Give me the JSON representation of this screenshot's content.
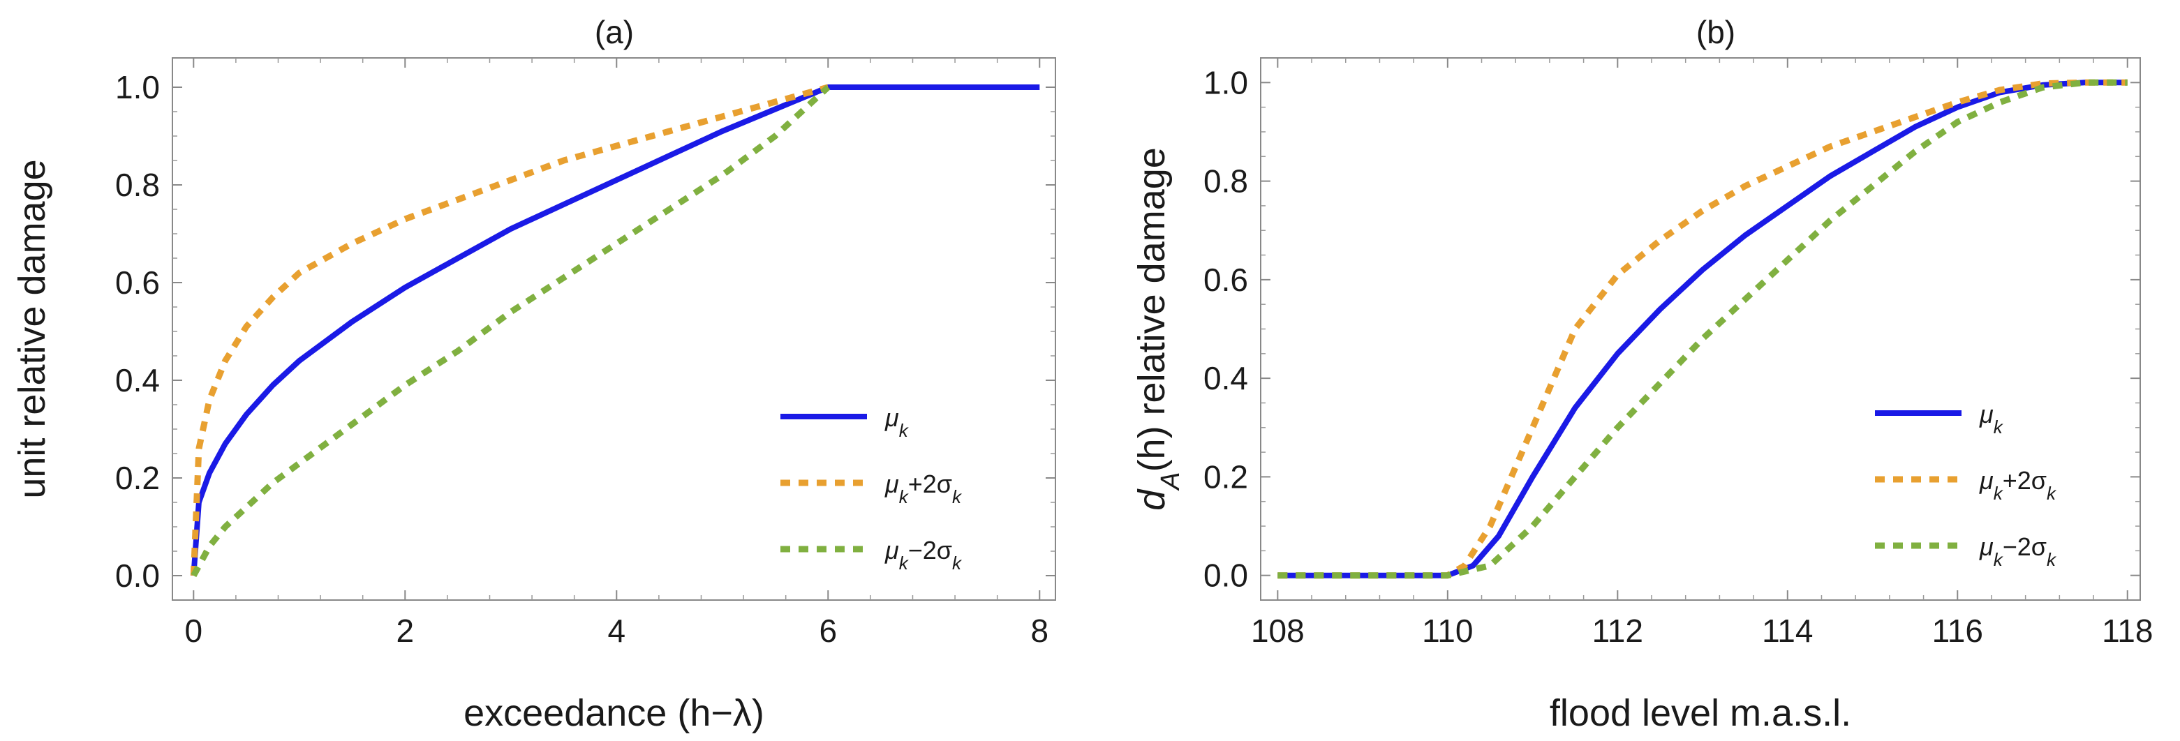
{
  "chart_data": [
    {
      "type": "line",
      "title": "(a)",
      "xlabel": "exceedance (h−λ)",
      "ylabel": "unit relative damage",
      "xlim": [
        -0.2,
        8.15
      ],
      "ylim": [
        -0.05,
        1.06
      ],
      "xticks": [
        0,
        2,
        4,
        6,
        8
      ],
      "xtick_labels": [
        "0",
        "2",
        "4",
        "6",
        "8"
      ],
      "yticks": [
        0,
        0.2,
        0.4,
        0.6,
        0.8,
        1.0
      ],
      "ytick_labels": [
        "0.0",
        "0.2",
        "0.4",
        "0.6",
        "0.8",
        "1.0"
      ],
      "grid": false,
      "legend_position": "lower-right",
      "series": [
        {
          "name": "μk",
          "label_base": "μ",
          "label_sub": "k",
          "label_rest": "",
          "label_sub2": "",
          "color": "#1a1ae6",
          "style": "solid",
          "x": [
            0,
            0.05,
            0.15,
            0.3,
            0.5,
            0.75,
            1.0,
            1.5,
            2.0,
            2.5,
            3.0,
            3.5,
            4.0,
            4.5,
            5.0,
            5.5,
            6.0,
            7.0,
            8.0
          ],
          "y": [
            0,
            0.15,
            0.21,
            0.27,
            0.33,
            0.39,
            0.44,
            0.52,
            0.59,
            0.65,
            0.71,
            0.76,
            0.81,
            0.86,
            0.91,
            0.955,
            1.0,
            1.0,
            1.0
          ]
        },
        {
          "name": "μk+2σk",
          "label_base": "μ",
          "label_sub": "k",
          "label_rest": "+2σ",
          "label_sub2": "k",
          "color": "#e8a030",
          "style": "dashed",
          "x": [
            0,
            0.05,
            0.15,
            0.3,
            0.5,
            0.75,
            1.0,
            1.5,
            2.0,
            2.5,
            3.0,
            3.5,
            4.0,
            4.5,
            5.0,
            5.5,
            6.0
          ],
          "y": [
            0,
            0.26,
            0.36,
            0.44,
            0.51,
            0.57,
            0.62,
            0.68,
            0.73,
            0.77,
            0.81,
            0.85,
            0.88,
            0.91,
            0.94,
            0.97,
            1.0
          ]
        },
        {
          "name": "μk−2σk",
          "label_base": "μ",
          "label_sub": "k",
          "label_rest": "−2σ",
          "label_sub2": "k",
          "color": "#80b040",
          "style": "dashed",
          "x": [
            0,
            0.05,
            0.15,
            0.3,
            0.5,
            0.75,
            1.0,
            1.5,
            2.0,
            2.5,
            3.0,
            3.5,
            4.0,
            4.5,
            5.0,
            5.5,
            6.0
          ],
          "y": [
            0,
            0.02,
            0.06,
            0.1,
            0.14,
            0.19,
            0.23,
            0.31,
            0.39,
            0.46,
            0.54,
            0.61,
            0.68,
            0.75,
            0.82,
            0.9,
            1.0
          ]
        }
      ]
    },
    {
      "type": "line",
      "title": "(b)",
      "xlabel": "flood level m.a.s.l.",
      "ylabel_main": "d",
      "ylabel_sub": "A",
      "ylabel_rest": "(h) relative damage",
      "xlim": [
        107.8,
        118.15
      ],
      "ylim": [
        -0.05,
        1.05
      ],
      "xticks": [
        108,
        110,
        112,
        114,
        116,
        118
      ],
      "xtick_labels": [
        "108",
        "110",
        "112",
        "114",
        "116",
        "118"
      ],
      "yticks": [
        0,
        0.2,
        0.4,
        0.6,
        0.8,
        1.0
      ],
      "ytick_labels": [
        "0.0",
        "0.2",
        "0.4",
        "0.6",
        "0.8",
        "1.0"
      ],
      "grid": false,
      "legend_position": "lower-right",
      "series": [
        {
          "name": "μk",
          "label_base": "μ",
          "label_sub": "k",
          "label_rest": "",
          "label_sub2": "",
          "color": "#1a1ae6",
          "style": "solid",
          "x": [
            108,
            109,
            110,
            110.3,
            110.6,
            111.0,
            111.5,
            112.0,
            112.5,
            113.0,
            113.5,
            114.0,
            114.5,
            115.0,
            115.5,
            116.0,
            116.5,
            117.0,
            117.5,
            118.0
          ],
          "y": [
            0,
            0,
            0,
            0.02,
            0.08,
            0.2,
            0.34,
            0.45,
            0.54,
            0.62,
            0.69,
            0.75,
            0.81,
            0.86,
            0.91,
            0.95,
            0.98,
            0.995,
            1.0,
            1.0
          ]
        },
        {
          "name": "μk+2σk",
          "label_base": "μ",
          "label_sub": "k",
          "label_rest": "+2σ",
          "label_sub2": "k",
          "color": "#e8a030",
          "style": "dashed",
          "x": [
            108,
            109,
            110,
            110.2,
            110.5,
            111.0,
            111.5,
            112.0,
            112.5,
            113.0,
            113.5,
            114.0,
            114.5,
            115.0,
            115.5,
            116.0,
            116.5,
            117.0,
            117.5,
            118.0
          ],
          "y": [
            0,
            0,
            0,
            0.02,
            0.1,
            0.3,
            0.5,
            0.61,
            0.68,
            0.74,
            0.79,
            0.83,
            0.87,
            0.9,
            0.93,
            0.96,
            0.985,
            0.998,
            1.0,
            1.0
          ]
        },
        {
          "name": "μk−2σk",
          "label_base": "μ",
          "label_sub": "k",
          "label_rest": "−2σ",
          "label_sub2": "k",
          "color": "#80b040",
          "style": "dashed",
          "x": [
            108,
            109,
            110,
            110.5,
            111.0,
            111.5,
            112.0,
            112.5,
            113.0,
            113.5,
            114.0,
            114.5,
            115.0,
            115.5,
            116.0,
            116.5,
            117.0,
            117.5,
            118.0
          ],
          "y": [
            0,
            0,
            0,
            0.02,
            0.1,
            0.2,
            0.3,
            0.39,
            0.48,
            0.56,
            0.64,
            0.72,
            0.79,
            0.86,
            0.92,
            0.96,
            0.99,
            1.0,
            1.0
          ]
        }
      ]
    }
  ]
}
